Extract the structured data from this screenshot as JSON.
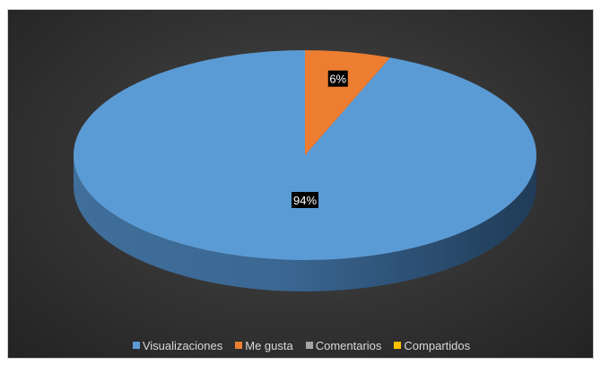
{
  "chart_data": {
    "type": "pie",
    "style": "3d",
    "title": "",
    "categories": [
      "Visualizaciones",
      "Me gusta",
      "Comentarios",
      "Compartidos"
    ],
    "values": [
      94,
      6,
      0,
      0
    ],
    "data_labels": [
      "94%",
      "6%",
      "",
      ""
    ],
    "colors": [
      "#5b9bd5",
      "#ed7d31",
      "#a5a5a5",
      "#ffc000"
    ],
    "legend_position": "bottom",
    "background": "dark"
  }
}
